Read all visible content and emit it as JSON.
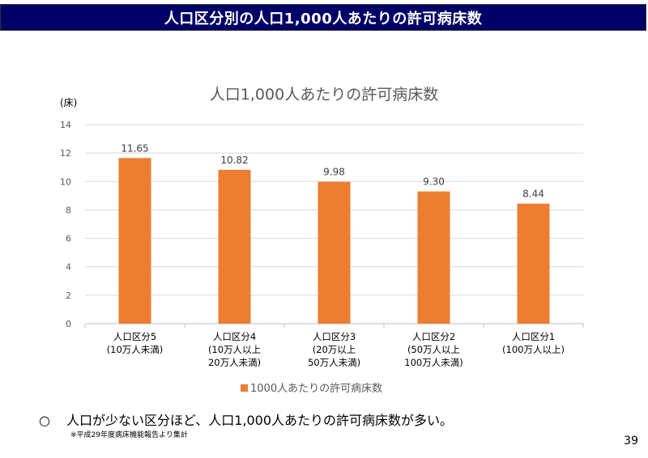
{
  "header": {
    "title": "人口区分別の人口1,000人あたりの許可病床数"
  },
  "chart_data": {
    "type": "bar",
    "title": "人口1,000人あたりの許可病床数",
    "ylabel": "(床)",
    "xlabel": "",
    "ylim": [
      0,
      14
    ],
    "yticks": [
      0,
      2,
      4,
      6,
      8,
      10,
      12,
      14
    ],
    "grid": true,
    "categories": [
      [
        "人口区分5",
        "(10万人未満)"
      ],
      [
        "人口区分4",
        "(10万人以上",
        "20万人未満)"
      ],
      [
        "人口区分3",
        "(20万以上",
        "50万人未満)"
      ],
      [
        "人口区分2",
        "(50万人以上",
        "100万人未満)"
      ],
      [
        "人口区分1",
        "(100万人以上)"
      ]
    ],
    "series": [
      {
        "name": "1000人あたりの許可病床数",
        "values": [
          11.65,
          10.82,
          9.98,
          9.3,
          8.44
        ],
        "labels": [
          "11.65",
          "10.82",
          "9.98",
          "9.30",
          "8.44"
        ],
        "color": "#ED7D31"
      }
    ],
    "legend_position": "bottom"
  },
  "footer": {
    "bullet": "○",
    "note": "人口が少ない区分ほど、人口1,000人あたりの許可病床数が多い。",
    "source": "※平成29年度病床機能報告より集計",
    "page_number": "39"
  }
}
